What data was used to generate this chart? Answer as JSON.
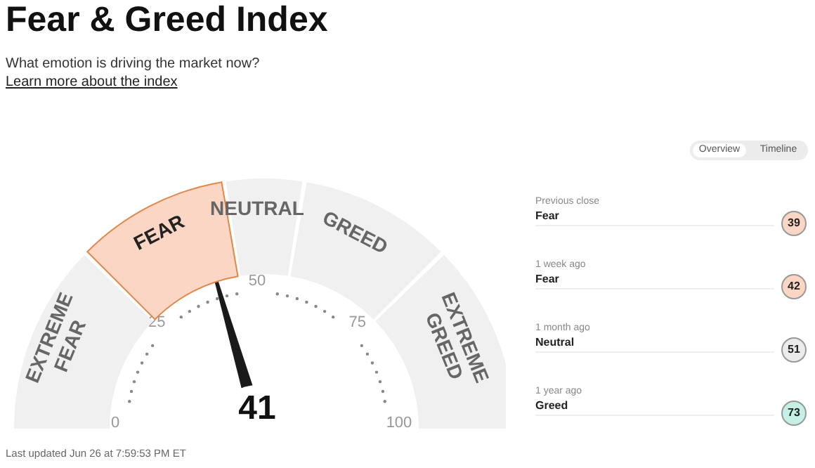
{
  "chart_data": [
    {
      "type": "donut",
      "title": "Fear & Greed Index",
      "subtitle": "What emotion is driving the market now?",
      "categories": [
        "EXTREME FEAR",
        "FEAR",
        "NEUTRAL",
        "GREED",
        "EXTREME GREED"
      ],
      "values": [
        25,
        20,
        10,
        20,
        25
      ],
      "colors": [
        "#f0f0f0",
        "#fcd6c4",
        "#f0f0f0",
        "#f0f0f0",
        "#f0f0f0"
      ],
      "needle": "FEAR",
      "annotations": [
        "Learn more about the index",
        "0",
        "25",
        "50",
        "75",
        "100",
        "41",
        "Last updated Jun 26 at 7:59:53 PM ET"
      ]
    },
    {
      "type": "other",
      "categories": [
        "Previous close",
        "1 week ago",
        "1 month ago",
        "1 year ago"
      ],
      "values": [
        39,
        42,
        51,
        73
      ],
      "data_labels": true,
      "colors": [
        "#fcd6c4",
        "#fcd6c4",
        "#ebebeb",
        "#c4f0e6"
      ],
      "annotations": [
        "Overview",
        "Timeline",
        "Fear",
        "Fear",
        "Neutral",
        "Greed"
      ]
    }
  ]
}
